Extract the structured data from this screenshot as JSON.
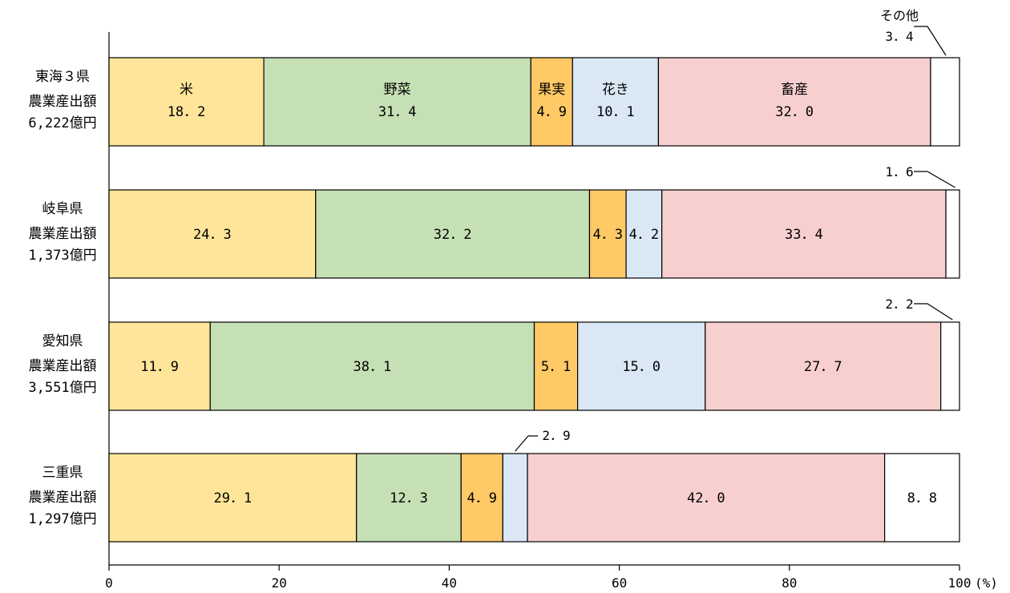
{
  "chart_data": {
    "type": "bar",
    "orientation": "horizontal",
    "stacked": true,
    "stack_mode": "percent",
    "x_unit": "(%)",
    "xlim": [
      0,
      100
    ],
    "x_ticks": [
      "0",
      "20",
      "40",
      "60",
      "80",
      "100"
    ],
    "grid": false,
    "segments": [
      "米",
      "野菜",
      "果実",
      "花き",
      "畜産",
      "その他"
    ],
    "colors": [
      "#ffe599",
      "#c5e0b4",
      "#ffc966",
      "#dae8f6",
      "#f8cfcf",
      "#ffffff"
    ],
    "categories": [
      {
        "name": "東海３県",
        "line2": "農業産出額",
        "line3": "6,222億円"
      },
      {
        "name": "岐阜県",
        "line2": "農業産出額",
        "line3": "1,373億円"
      },
      {
        "name": "愛知県",
        "line2": "農業産出額",
        "line3": "3,551億円"
      },
      {
        "name": "三重県",
        "line2": "農業産出額",
        "line3": "1,297億円"
      }
    ],
    "series": [
      {
        "name": "米",
        "values": [
          18.2,
          24.3,
          11.9,
          29.1
        ]
      },
      {
        "name": "野菜",
        "values": [
          31.4,
          32.2,
          38.1,
          12.3
        ]
      },
      {
        "name": "果実",
        "values": [
          4.9,
          4.3,
          5.1,
          4.9
        ]
      },
      {
        "name": "花き",
        "values": [
          10.1,
          4.2,
          15.0,
          2.9
        ]
      },
      {
        "name": "畜産",
        "values": [
          32.0,
          33.4,
          27.7,
          42.0
        ]
      },
      {
        "name": "その他",
        "values": [
          3.4,
          1.6,
          2.2,
          8.8
        ]
      }
    ],
    "value_labels": [
      [
        "18.2",
        "31.4",
        "4.9",
        "10.1",
        "32.0",
        "3.4"
      ],
      [
        "24.3",
        "32.2",
        "4.3",
        "4.2",
        "33.4",
        "1.6"
      ],
      [
        "11.9",
        "38.1",
        "5.1",
        "15.0",
        "27.7",
        "2.2"
      ],
      [
        "29.1",
        "12.3",
        "4.9",
        "2.9",
        "42.0",
        "8.8"
      ]
    ],
    "value_label_text": [
      [
        "18．2",
        "31．4",
        "4．9",
        "10．1",
        "32．0",
        "3．4"
      ],
      [
        "24．3",
        "32．2",
        "4．3",
        "4．2",
        "33．4",
        "1．6"
      ],
      [
        "11．9",
        "38．1",
        "5．1",
        "15．0",
        "27．7",
        "2．2"
      ],
      [
        "29．1",
        "12．3",
        "4．9",
        "2．9",
        "42．0",
        "8．8"
      ]
    ],
    "inline_segment_names_row": 0,
    "inline_segment_names": [
      "米",
      "野菜",
      "果実",
      "花き",
      "畜産"
    ],
    "callout_segment_name": "その他"
  }
}
